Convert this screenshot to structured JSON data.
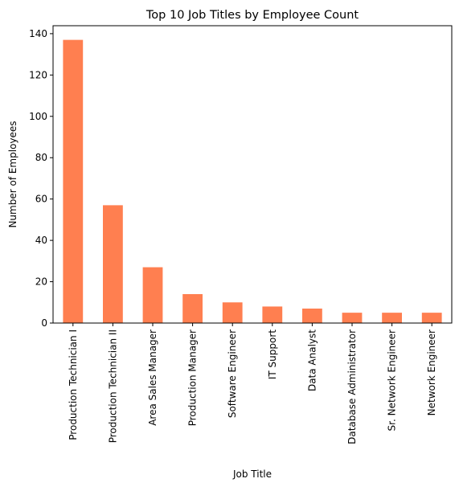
{
  "chart_data": {
    "type": "bar",
    "title": "Top 10 Job Titles by Employee Count",
    "xlabel": "Job Title",
    "ylabel": "Number of Employees",
    "categories": [
      "Production Technician I",
      "Production Technician II",
      "Area Sales Manager",
      "Production Manager",
      "Software Engineer",
      "IT Support",
      "Data Analyst",
      "Database Administrator",
      "Sr. Network Engineer",
      "Network Engineer"
    ],
    "values": [
      137,
      57,
      27,
      14,
      10,
      8,
      7,
      5,
      5,
      5
    ],
    "ylim": [
      0,
      143.85
    ],
    "yticks": [
      0,
      20,
      40,
      60,
      80,
      100,
      120,
      140
    ],
    "grid": false,
    "legend": "none",
    "bar_color": "#ff7f50"
  }
}
